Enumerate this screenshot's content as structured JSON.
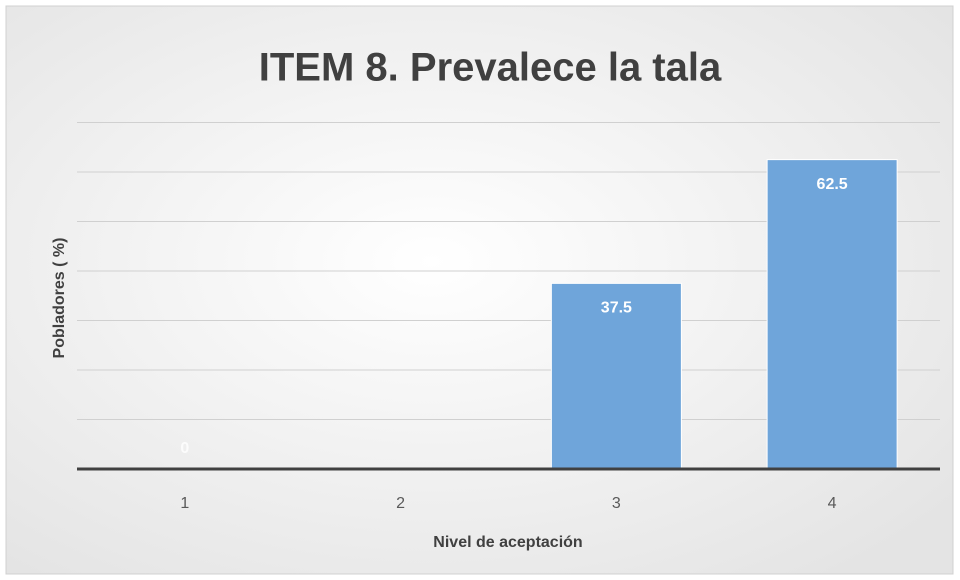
{
  "chart_data": {
    "type": "bar",
    "title": "ITEM 8. Prevalece la tala",
    "x_label": "Nivel de aceptación",
    "y_label": "Pobladores ( %)",
    "categories": [
      "1",
      "2",
      "3",
      "4"
    ],
    "values": [
      0,
      null,
      37.5,
      62.5
    ],
    "color": "#6fa5da",
    "ylim": [
      0,
      70
    ],
    "yticks": [
      0,
      10,
      20,
      30,
      40,
      50,
      60,
      70
    ],
    "grid": true
  }
}
